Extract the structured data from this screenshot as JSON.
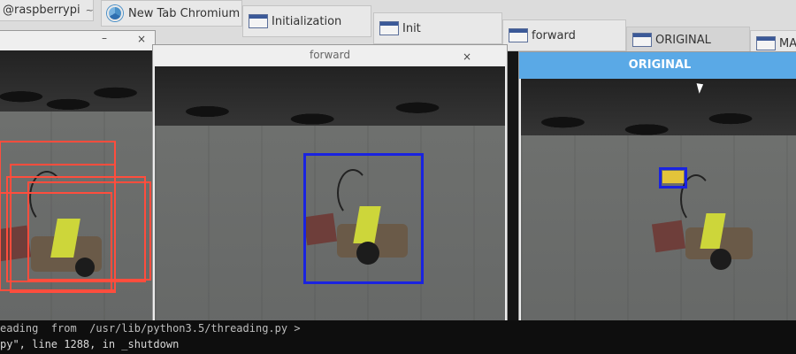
{
  "taskbar": {
    "tasks": [
      {
        "label": "@raspberrypi",
        "caret": "~"
      },
      {
        "label": "New Tab  Chromium"
      },
      {
        "label": "Initialization"
      },
      {
        "label": "Init"
      },
      {
        "label": "forward"
      },
      {
        "label": "ORIGINAL"
      },
      {
        "label": "MASK"
      }
    ]
  },
  "windows": {
    "init": {
      "minimize": "–",
      "close": "×"
    },
    "forward": {
      "title": "forward",
      "close": "×"
    },
    "original": {
      "header": "ORIGINAL"
    }
  },
  "terminal": {
    "line1": "eading  from  /usr/lib/python3.5/threading.py >",
    "line2": "py\", line 1288, in _shutdown"
  },
  "colors": {
    "red_box": "#ff4d3d",
    "blue_box": "#1a23e0",
    "original_header": "#5aa9e6"
  }
}
